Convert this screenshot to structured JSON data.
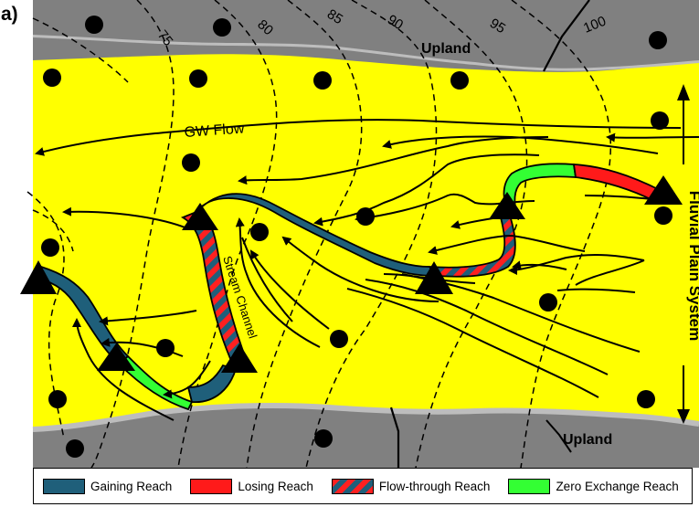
{
  "panel_label": "a)",
  "upland_top_label": "Upland",
  "upland_bottom_label": "Upland",
  "gw_flow_label": "GW Flow",
  "stream_channel_label": "Stream Channel",
  "fluvial_plain_label": "Fluvial Plain System",
  "contours": [
    {
      "value": "75"
    },
    {
      "value": "80"
    },
    {
      "value": "85"
    },
    {
      "value": "90"
    },
    {
      "value": "95"
    },
    {
      "value": "100"
    }
  ],
  "legend": {
    "gaining": "Gaining Reach",
    "losing": "Losing Reach",
    "flow_through": "Flow-through Reach",
    "zero_exchange": "Zero Exchange Reach"
  },
  "colors": {
    "upland": "#808080",
    "plain": "#ffff00",
    "gaining": "#1f5f7a",
    "losing": "#ff1a1a",
    "zero_exchange": "#33ff33"
  }
}
